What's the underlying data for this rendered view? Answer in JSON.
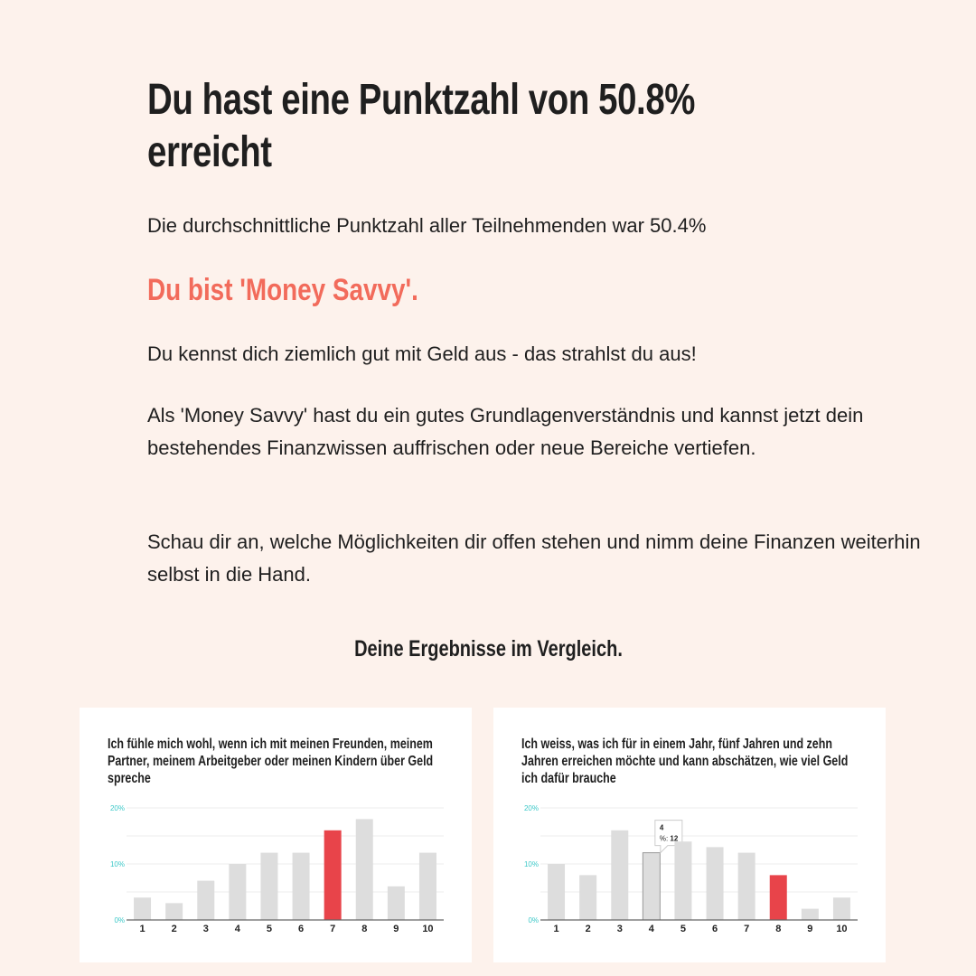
{
  "headline": "Du hast eine Punktzahl von 50.8% erreicht",
  "average_text": "Die durchschnittliche Punktzahl aller Teilnehmenden war 50.4%",
  "type_text": "Du bist 'Money Savvy'.",
  "paragraphs": [
    "Du kennst dich ziemlich gut mit Geld aus - das strahlst du aus!",
    "Als 'Money Savvy' hast du ein gutes Grundlagenverständnis und kannst jetzt dein bestehendes Finanzwissen auffrischen oder neue Bereiche vertiefen.",
    "Schau dir an, welche Möglichkeiten dir offen stehen und nimm deine Finanzen weiterhin selbst in die Hand."
  ],
  "comparison_heading": "Deine Ergebnisse im Vergleich.",
  "colors": {
    "accent": "#f26b5b",
    "highlight_bar": "#e8444a",
    "bar": "#dddddd",
    "axis_label": "#3cc8c8",
    "background": "#fdf2ec"
  },
  "chart_data": [
    {
      "type": "bar",
      "title": "Ich fühle mich wohl, wenn ich mit meinen Freunden, meinem Partner, meinem Arbeitgeber oder meinen Kindern über Geld spreche",
      "categories": [
        "1",
        "2",
        "3",
        "4",
        "5",
        "6",
        "7",
        "8",
        "9",
        "10"
      ],
      "values": [
        4,
        3,
        7,
        10,
        12,
        12,
        16,
        18,
        6,
        12
      ],
      "highlight_category": "7",
      "ylim": [
        0,
        20
      ],
      "yticks": [
        "0%",
        "10%",
        "20%"
      ],
      "grid": true
    },
    {
      "type": "bar",
      "title": "Ich weiss, was ich für in einem Jahr, fünf Jahren und zehn Jahren erreichen möchte und kann abschätzen, wie viel Geld ich dafür brauche",
      "categories": [
        "1",
        "2",
        "3",
        "4",
        "5",
        "6",
        "7",
        "8",
        "9",
        "10"
      ],
      "values": [
        10,
        8,
        16,
        12,
        14,
        13,
        12,
        8,
        2,
        4
      ],
      "highlight_category": "8",
      "ylim": [
        0,
        20
      ],
      "yticks": [
        "0%",
        "10%",
        "20%"
      ],
      "grid": true,
      "tooltip": {
        "category": "4",
        "label": "%:",
        "value": "12"
      }
    }
  ]
}
